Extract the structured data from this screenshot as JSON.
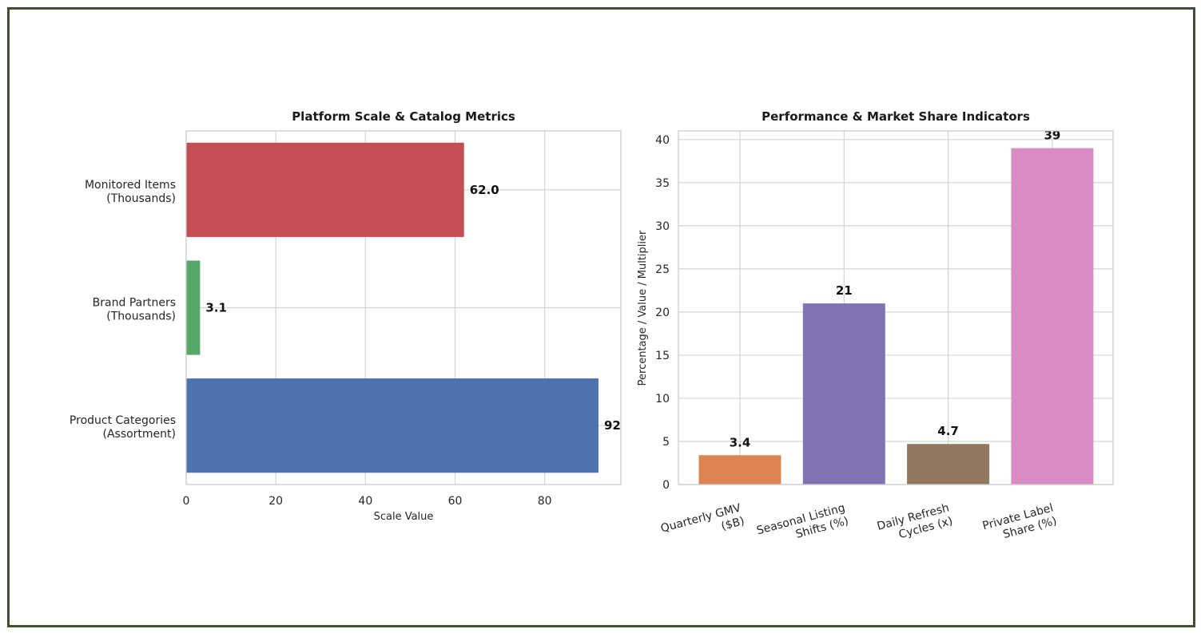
{
  "chart_data": [
    {
      "type": "bar",
      "orientation": "horizontal",
      "title": "Platform Scale & Catalog Metrics",
      "xlabel": "Scale Value",
      "ylabel": "",
      "xlim": [
        0,
        97
      ],
      "xticks": [
        0,
        20,
        40,
        60,
        80
      ],
      "grid": true,
      "categories": [
        [
          "Monitored Items",
          "(Thousands)"
        ],
        [
          "Brand Partners",
          "(Thousands)"
        ],
        [
          "Product Categories",
          "(Assortment)"
        ]
      ],
      "values": [
        62.0,
        3.1,
        92
      ],
      "value_labels": [
        "62.0",
        "3.1",
        "92"
      ],
      "colors": [
        "#c44e52",
        "#55a868",
        "#4c72b0"
      ]
    },
    {
      "type": "bar",
      "orientation": "vertical",
      "title": "Performance & Market Share Indicators",
      "xlabel": "",
      "ylabel": "Percentage / Value / Multiplier",
      "ylim": [
        0,
        41
      ],
      "yticks": [
        0,
        5,
        10,
        15,
        20,
        25,
        30,
        35,
        40
      ],
      "grid": true,
      "categories": [
        [
          "Quarterly GMV",
          "($B)"
        ],
        [
          "Seasonal Listing",
          "Shifts (%)"
        ],
        [
          "Daily Refresh",
          "Cycles (x)"
        ],
        [
          "Private Label",
          "Share (%)"
        ]
      ],
      "values": [
        3.4,
        21,
        4.7,
        39
      ],
      "value_labels": [
        "3.4",
        "21",
        "4.7",
        "39"
      ],
      "colors": [
        "#dd8452",
        "#8172b3",
        "#937860",
        "#da8bc3"
      ]
    }
  ]
}
